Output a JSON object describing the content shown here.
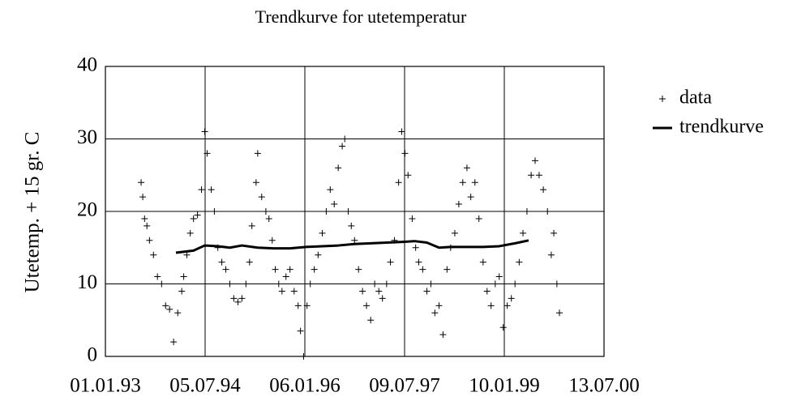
{
  "chart_data": {
    "type": "scatter",
    "title": "Trendkurve for utetemperatur",
    "y_label": "Utetemp. + 15 gr. C",
    "xlim": [
      "1993-01-01",
      "2000-07-13"
    ],
    "xticks": [
      {
        "value": "1993-01-01",
        "label": "01.01.93"
      },
      {
        "value": "1994-07-05",
        "label": "05.07.94"
      },
      {
        "value": "1996-01-06",
        "label": "06.01.96"
      },
      {
        "value": "1997-07-09",
        "label": "09.07.97"
      },
      {
        "value": "1999-01-10",
        "label": "10.01.99"
      },
      {
        "value": "2000-07-13",
        "label": "13.07.00"
      }
    ],
    "ylim": [
      0,
      40
    ],
    "yticks": [
      0,
      10,
      20,
      30,
      40
    ],
    "grid": true,
    "legend": "right",
    "series": [
      {
        "name": "data",
        "kind": "points",
        "color": "#000000",
        "x": [
          "1993-07-17",
          "1993-07-26",
          "1993-08-05",
          "1993-08-18",
          "1993-09-01",
          "1993-09-23",
          "1993-10-15",
          "1993-11-07",
          "1993-11-29",
          "1993-12-21",
          "1994-01-12",
          "1994-02-04",
          "1994-02-26",
          "1994-03-09",
          "1994-03-26",
          "1994-04-14",
          "1994-05-02",
          "1994-05-24",
          "1994-06-15",
          "1994-07-03",
          "1994-07-16",
          "1994-08-08",
          "1994-08-25",
          "1994-09-13",
          "1994-10-05",
          "1994-10-27",
          "1994-11-18",
          "1994-12-10",
          "1995-01-02",
          "1995-01-24",
          "1995-02-15",
          "1995-03-07",
          "1995-03-20",
          "1995-04-12",
          "1995-04-21",
          "1995-05-13",
          "1995-06-05",
          "1995-06-22",
          "1995-07-10",
          "1995-07-27",
          "1995-08-15",
          "1995-09-02",
          "1995-09-24",
          "1995-10-16",
          "1995-11-08",
          "1995-11-30",
          "1995-12-13",
          "1995-12-30",
          "1996-01-18",
          "1996-02-05",
          "1996-02-27",
          "1996-03-19",
          "1996-04-11",
          "1996-05-03",
          "1996-05-25",
          "1996-06-16",
          "1996-07-08",
          "1996-07-30",
          "1996-08-13",
          "1996-09-01",
          "1996-09-18",
          "1996-10-06",
          "1996-10-28",
          "1996-11-19",
          "1996-12-11",
          "1997-01-03",
          "1997-01-25",
          "1997-02-17",
          "1997-03-09",
          "1997-04-01",
          "1997-04-22",
          "1997-05-14",
          "1997-06-06",
          "1997-06-23",
          "1997-07-11",
          "1997-07-28",
          "1997-08-20",
          "1997-09-08",
          "1997-09-25",
          "1997-10-17",
          "1997-11-09",
          "1997-12-01",
          "1997-12-23",
          "1998-01-15",
          "1998-02-06",
          "1998-02-28",
          "1998-03-20",
          "1998-04-12",
          "1998-05-04",
          "1998-05-26",
          "1998-06-18",
          "1998-07-09",
          "1998-08-01",
          "1998-08-23",
          "1998-09-15",
          "1998-10-07",
          "1998-10-29",
          "1998-11-21",
          "1998-12-13",
          "1999-01-04",
          "1999-01-26",
          "1999-02-18",
          "1999-03-10",
          "1999-04-02",
          "1999-04-23",
          "1999-05-15",
          "1999-06-07",
          "1999-06-29",
          "1999-07-21",
          "1999-08-13",
          "1999-09-05",
          "1999-09-26",
          "1999-10-10",
          "1999-10-27",
          "1999-11-10"
        ],
        "values": [
          24,
          22,
          19,
          18,
          16,
          14,
          11,
          10,
          7,
          6.5,
          2,
          6,
          9,
          11,
          14,
          17,
          19,
          19.5,
          23,
          31,
          28,
          23,
          20,
          15,
          13,
          12,
          10,
          8,
          7.5,
          8,
          10,
          13,
          18,
          24,
          28,
          22,
          20,
          19,
          16,
          12,
          10,
          9,
          11,
          12,
          9,
          7,
          3.5,
          0,
          7,
          10,
          12,
          14,
          17,
          20,
          23,
          21,
          26,
          29,
          30,
          20,
          18,
          16,
          12,
          9,
          7,
          5,
          10,
          9,
          8,
          10,
          13,
          16,
          24,
          31,
          28,
          25,
          19,
          15,
          13,
          12,
          9,
          10,
          6,
          7,
          3,
          12,
          15,
          17,
          21,
          24,
          26,
          22,
          24,
          19,
          13,
          9,
          7,
          10,
          11,
          4,
          7,
          8,
          10,
          13,
          17,
          20,
          25,
          27,
          25,
          23,
          20,
          14,
          17,
          10,
          6
        ]
      },
      {
        "name": "trendkurve",
        "kind": "line",
        "color": "#000000",
        "x": [
          "1994-01-25",
          "1994-05-02",
          "1994-07-03",
          "1994-09-13",
          "1994-11-18",
          "1995-01-24",
          "1995-04-21",
          "1995-07-19",
          "1995-10-16",
          "1996-01-13",
          "1996-04-11",
          "1996-07-08",
          "1996-10-06",
          "1997-01-03",
          "1997-04-01",
          "1997-06-28",
          "1997-09-03",
          "1997-11-09",
          "1998-01-15",
          "1998-03-20",
          "1998-06-18",
          "1998-09-15",
          "1998-12-13",
          "1999-03-10",
          "1999-05-24"
        ],
        "values": [
          14.3,
          14.6,
          15.3,
          15.2,
          15.0,
          15.3,
          15.0,
          14.9,
          14.9,
          15.1,
          15.2,
          15.3,
          15.5,
          15.6,
          15.7,
          15.8,
          15.9,
          15.7,
          15.0,
          15.1,
          15.1,
          15.1,
          15.2,
          15.6,
          16.0
        ]
      }
    ]
  }
}
